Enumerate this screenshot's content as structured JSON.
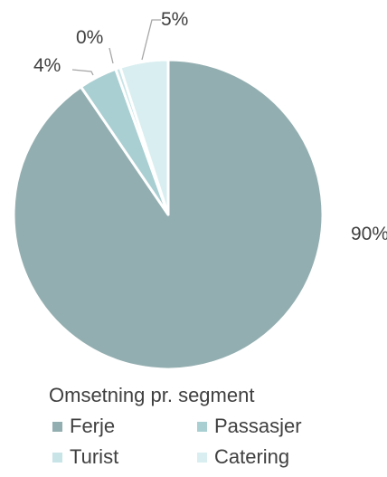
{
  "chart_data": {
    "type": "pie",
    "title": "Omsetning pr. segment",
    "categories": [
      "Ferje",
      "Passasjer",
      "Turist",
      "Catering"
    ],
    "values": [
      90,
      4,
      0.5,
      5
    ],
    "labels": [
      "90%",
      "4%",
      "0%",
      "5%"
    ],
    "colors": [
      "#93aeb0",
      "#a9cfd2",
      "#c8e4e7",
      "#d9eef0"
    ],
    "legend_position": "bottom",
    "start_angle_deg": 0,
    "direction": "clockwise"
  }
}
